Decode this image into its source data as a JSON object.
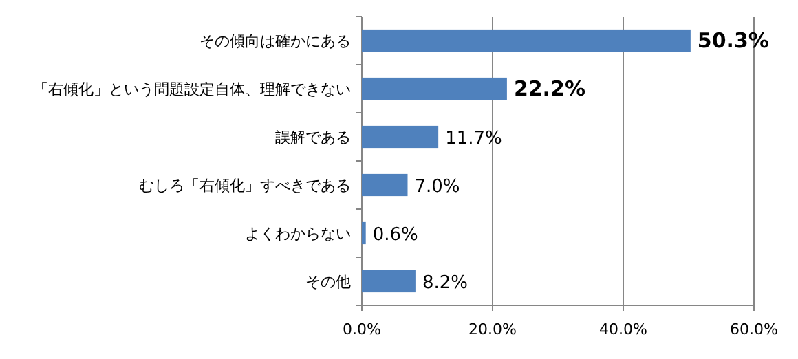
{
  "chart_data": {
    "type": "bar",
    "orientation": "horizontal",
    "categories": [
      "その傾向は確かにある",
      "「右傾化」という問題設定自体、理解できない",
      "誤解である",
      "むしろ「右傾化」すべきである",
      "よくわからない",
      "その他"
    ],
    "values": [
      50.3,
      22.2,
      11.7,
      7.0,
      0.6,
      8.2
    ],
    "value_labels": [
      "50.3%",
      "22.2%",
      "11.7%",
      "7.0%",
      "0.6%",
      "8.2%"
    ],
    "color": "#4f81bd",
    "xlim": [
      0,
      60
    ],
    "xticks": [
      {
        "value": 0,
        "label": "0.0%"
      },
      {
        "value": 20,
        "label": "20.0%"
      },
      {
        "value": 40,
        "label": "40.0%"
      },
      {
        "value": 60,
        "label": "60.0%"
      }
    ],
    "grid": "x"
  }
}
